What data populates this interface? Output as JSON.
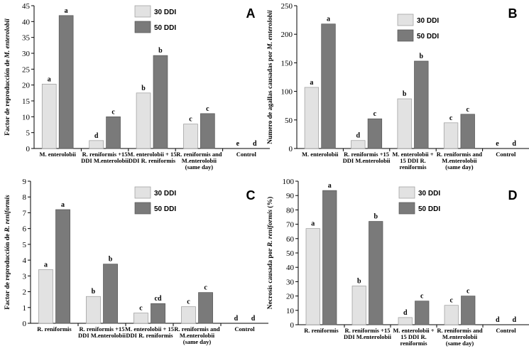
{
  "colors": {
    "series_30": "#e2e2e2",
    "series_50": "#7a7a7a",
    "axis": "#000000"
  },
  "chart_data": [
    {
      "type": "bar",
      "panel": "A",
      "ylabel_prefix": "Factor de reproducción de ",
      "ylabel_italic": "M. enterolobii",
      "ylim": [
        0,
        45
      ],
      "ytick_step": 5,
      "categories": [
        [
          "M. enterolobii"
        ],
        [
          "R. reniformis +15",
          "DDI M.enterolobii"
        ],
        [
          "M. enterolobii + 15",
          "DDI R. reniformis"
        ],
        [
          "R. reniformis and",
          "M.enterolobii",
          "(same day)"
        ],
        [
          "Control"
        ]
      ],
      "series": [
        {
          "name": "30 DDI",
          "values": [
            20.3,
            2.5,
            17.5,
            7.7,
            0
          ],
          "labels": [
            "a",
            "d",
            "b",
            "c",
            "e"
          ]
        },
        {
          "name": "50 DDI",
          "values": [
            41.9,
            10.0,
            29.3,
            11.0,
            0
          ],
          "labels": [
            "a",
            "c",
            "b",
            "c",
            "d"
          ]
        }
      ]
    },
    {
      "type": "bar",
      "panel": "B",
      "ylabel_prefix": "Numero de agallas causadas por ",
      "ylabel_italic": "M. enterolobii",
      "ylim": [
        0,
        250
      ],
      "ytick_step": 50,
      "categories": [
        [
          "M. enterolobii"
        ],
        [
          "R. reniformis +15",
          "DDI M.enterolobii"
        ],
        [
          "M. enterolobii +",
          "15 DDI R.",
          "reniformis"
        ],
        [
          "R. reniformis and",
          "M.enterolobii",
          "(same day)"
        ],
        [
          "Control"
        ]
      ],
      "series": [
        {
          "name": "30 DDI",
          "values": [
            107,
            14,
            87,
            45,
            0
          ],
          "labels": [
            "a",
            "d",
            "b",
            "c",
            "e"
          ]
        },
        {
          "name": "50 DDI",
          "values": [
            218,
            52,
            153,
            60,
            0
          ],
          "labels": [
            "a",
            "c",
            "b",
            "c",
            "d"
          ]
        }
      ]
    },
    {
      "type": "bar",
      "panel": "C",
      "ylabel_prefix": "Factor de reproducción de ",
      "ylabel_italic": "R. reniformis",
      "ylim": [
        0,
        9
      ],
      "ytick_step": 1,
      "categories": [
        [
          "R. reniformis"
        ],
        [
          "R. reniformis +15",
          "DDI M.enterolobii"
        ],
        [
          "M. enterolobii + 15",
          "DDI R. reniformis"
        ],
        [
          "R. reniformis and",
          "M.enterolobii",
          "(same day)"
        ],
        [
          "Control"
        ]
      ],
      "series": [
        {
          "name": "30 DDI",
          "values": [
            3.4,
            1.7,
            0.65,
            1.05,
            0
          ],
          "labels": [
            "a",
            "b",
            "c",
            "c",
            "d"
          ]
        },
        {
          "name": "50 DDI",
          "values": [
            7.2,
            3.75,
            1.25,
            1.95,
            0
          ],
          "labels": [
            "a",
            "b",
            "cd",
            "c",
            "d"
          ]
        }
      ]
    },
    {
      "type": "bar",
      "panel": "D",
      "ylabel_prefix": "Necrosis causada por ",
      "ylabel_italic": "R. reniformis",
      "ylabel_suffix": " (%)",
      "ylim": [
        0,
        100
      ],
      "ytick_step": 10,
      "categories": [
        [
          "R. reniformis"
        ],
        [
          "R. reniformis +15",
          "DDI M.enterolobii"
        ],
        [
          "M. enterolobii +",
          "15 DDI R.",
          "reniformis"
        ],
        [
          "R. reniformis and",
          "M.enterolobii",
          "(same day)"
        ],
        [
          "Control"
        ]
      ],
      "series": [
        {
          "name": "30 DDI",
          "values": [
            67,
            27,
            5,
            13.5,
            0
          ],
          "labels": [
            "a",
            "b",
            "d",
            "c",
            "d"
          ]
        },
        {
          "name": "50 DDI",
          "values": [
            93.5,
            72,
            16.5,
            20,
            0
          ],
          "labels": [
            "a",
            "b",
            "c",
            "c",
            "d"
          ]
        }
      ]
    }
  ]
}
